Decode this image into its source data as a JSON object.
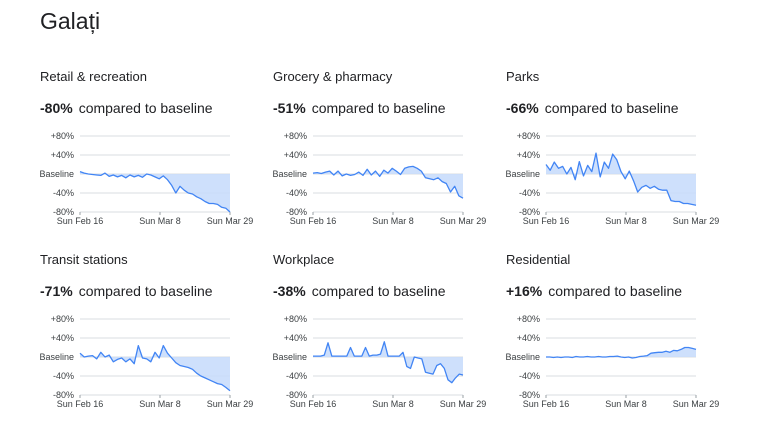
{
  "title": "Galați",
  "colors": {
    "line": "#4285f4",
    "fill": "#c6dafc",
    "grid": "#dadce0"
  },
  "chart_data": [
    {
      "type": "area",
      "title": "Retail & recreation",
      "value_label": "-80%",
      "subtitle": "compared to baseline",
      "yticks": [
        "+80%",
        "+40%",
        "Baseline",
        "-40%",
        "-80%"
      ],
      "ylim": [
        -80,
        80
      ],
      "xticks": [
        "Sun Feb 16",
        "Sun Mar 8",
        "Sun Mar 29"
      ],
      "values": [
        5,
        2,
        0,
        -1,
        -2,
        -3,
        2,
        -5,
        -2,
        -6,
        -3,
        -8,
        -2,
        -6,
        -3,
        -7,
        0,
        -2,
        -6,
        -10,
        -4,
        -12,
        -24,
        -40,
        -26,
        -34,
        -40,
        -42,
        -48,
        -52,
        -58,
        -62,
        -62,
        -64,
        -70,
        -72,
        -80
      ]
    },
    {
      "type": "area",
      "title": "Grocery & pharmacy",
      "value_label": "-51%",
      "subtitle": "compared to baseline",
      "yticks": [
        "+80%",
        "+40%",
        "Baseline",
        "-40%",
        "-80%"
      ],
      "ylim": [
        -80,
        80
      ],
      "xticks": [
        "Sun Feb 16",
        "Sun Mar 8",
        "Sun Mar 29"
      ],
      "values": [
        2,
        3,
        1,
        4,
        6,
        -2,
        6,
        -4,
        0,
        -3,
        -1,
        4,
        -3,
        10,
        -2,
        6,
        -5,
        8,
        2,
        12,
        6,
        -1,
        12,
        15,
        16,
        12,
        6,
        -8,
        -10,
        -12,
        -8,
        -16,
        -20,
        -38,
        -26,
        -46,
        -51
      ]
    },
    {
      "type": "area",
      "title": "Parks",
      "value_label": "-66%",
      "subtitle": "compared to baseline",
      "yticks": [
        "+80%",
        "+40%",
        "Baseline",
        "-40%",
        "-80%"
      ],
      "ylim": [
        -80,
        80
      ],
      "xticks": [
        "Sun Feb 16",
        "Sun Mar 8",
        "Sun Mar 29"
      ],
      "values": [
        20,
        8,
        25,
        12,
        16,
        0,
        14,
        -12,
        26,
        -4,
        18,
        5,
        44,
        -6,
        25,
        12,
        42,
        30,
        5,
        -10,
        6,
        -14,
        -38,
        -28,
        -24,
        -30,
        -26,
        -32,
        -34,
        -34,
        -56,
        -58,
        -58,
        -62,
        -62,
        -64,
        -66
      ]
    },
    {
      "type": "area",
      "title": "Transit stations",
      "value_label": "-71%",
      "subtitle": "compared to baseline",
      "yticks": [
        "+80%",
        "+40%",
        "Baseline",
        "-40%",
        "-80%"
      ],
      "ylim": [
        -80,
        80
      ],
      "xticks": [
        "Sun Feb 16",
        "Sun Mar 8",
        "Sun Mar 29"
      ],
      "values": [
        8,
        0,
        2,
        3,
        -4,
        10,
        0,
        4,
        -10,
        -5,
        -2,
        -10,
        -4,
        -14,
        24,
        -2,
        -4,
        -10,
        10,
        -2,
        24,
        8,
        -2,
        -12,
        -18,
        -20,
        -22,
        -26,
        -34,
        -40,
        -44,
        -48,
        -52,
        -56,
        -58,
        -64,
        -71
      ]
    },
    {
      "type": "area",
      "title": "Workplace",
      "value_label": "-38%",
      "subtitle": "compared to baseline",
      "yticks": [
        "+80%",
        "+40%",
        "Baseline",
        "-40%",
        "-80%"
      ],
      "ylim": [
        -80,
        80
      ],
      "xticks": [
        "Sun Feb 16",
        "Sun Mar 8",
        "Sun Mar 29"
      ],
      "values": [
        2,
        2,
        2,
        4,
        30,
        2,
        2,
        2,
        2,
        2,
        20,
        2,
        2,
        2,
        20,
        2,
        4,
        4,
        6,
        32,
        2,
        2,
        2,
        2,
        10,
        -20,
        -24,
        0,
        -2,
        -4,
        -32,
        -34,
        -36,
        -18,
        -14,
        -24,
        -48,
        -54,
        -44,
        -36,
        -38
      ]
    },
    {
      "type": "area",
      "title": "Residential",
      "value_label": "+16%",
      "subtitle": "compared to baseline",
      "yticks": [
        "+80%",
        "+40%",
        "Baseline",
        "-40%",
        "-80%"
      ],
      "ylim": [
        -80,
        80
      ],
      "xticks": [
        "Sun Feb 16",
        "Sun Mar 8",
        "Sun Mar 29"
      ],
      "values": [
        0,
        0,
        -1,
        0,
        -1,
        0,
        0,
        -1,
        1,
        0,
        0,
        1,
        0,
        0,
        1,
        0,
        0,
        1,
        1,
        2,
        0,
        -1,
        0,
        -2,
        -1,
        1,
        2,
        3,
        8,
        9,
        10,
        10,
        12,
        10,
        14,
        13,
        16,
        20,
        20,
        18,
        16
      ]
    }
  ]
}
